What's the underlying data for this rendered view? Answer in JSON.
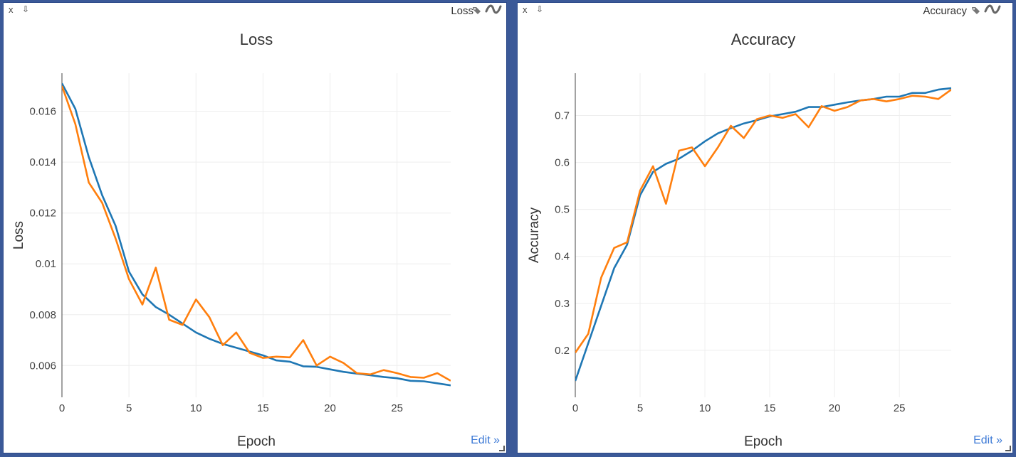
{
  "panels": [
    {
      "close_label": "x",
      "download_glyph": "⇩",
      "label": "Loss",
      "tag_icon": "tag-icon",
      "smooth_icon": "smoothing-icon",
      "edit_label": "Edit »"
    },
    {
      "close_label": "x",
      "download_glyph": "⇩",
      "label": "Accuracy",
      "tag_icon": "tag-icon",
      "smooth_icon": "smoothing-icon",
      "edit_label": "Edit »"
    }
  ],
  "colors": {
    "series_train": "#1f77b4",
    "series_val": "#ff7f0e",
    "background": "#3b5998",
    "link": "#3d7ad6"
  },
  "chart_data": [
    {
      "type": "line",
      "title": "Loss",
      "xlabel": "Epoch",
      "ylabel": "Loss",
      "xlim": [
        0,
        29
      ],
      "ylim": [
        0.00475,
        0.0175
      ],
      "xticks": [
        0,
        5,
        10,
        15,
        20,
        25
      ],
      "yticks": [
        0.006,
        0.008,
        0.01,
        0.012,
        0.014,
        0.016
      ],
      "ytick_labels": [
        "0.006",
        "0.008",
        "0.01",
        "0.012",
        "0.014",
        "0.016"
      ],
      "grid": true,
      "x": [
        0,
        1,
        2,
        3,
        4,
        5,
        6,
        7,
        8,
        9,
        10,
        11,
        12,
        13,
        14,
        15,
        16,
        17,
        18,
        19,
        20,
        21,
        22,
        23,
        24,
        25,
        26,
        27,
        28,
        29
      ],
      "series": [
        {
          "color": "#1f77b4",
          "values": [
            0.0171,
            0.0161,
            0.0142,
            0.0127,
            0.0115,
            0.0097,
            0.0088,
            0.0083,
            0.008,
            0.00765,
            0.0073,
            0.00705,
            0.00685,
            0.0067,
            0.00655,
            0.0064,
            0.0062,
            0.00615,
            0.00597,
            0.00595,
            0.00585,
            0.00575,
            0.00568,
            0.00562,
            0.00555,
            0.0055,
            0.0054,
            0.00538,
            0.0053,
            0.00522
          ]
        },
        {
          "color": "#ff7f0e",
          "values": [
            0.017,
            0.0155,
            0.0132,
            0.0124,
            0.011,
            0.0094,
            0.0084,
            0.00985,
            0.0078,
            0.0076,
            0.0086,
            0.0079,
            0.0068,
            0.0073,
            0.0065,
            0.0063,
            0.00635,
            0.00632,
            0.007,
            0.006,
            0.00635,
            0.0061,
            0.0057,
            0.00565,
            0.00582,
            0.0057,
            0.00555,
            0.00552,
            0.0057,
            0.0054
          ]
        }
      ]
    },
    {
      "type": "line",
      "title": "Accuracy",
      "xlabel": "Epoch",
      "ylabel": "Accuracy",
      "xlim": [
        0,
        29
      ],
      "ylim": [
        0.1,
        0.79
      ],
      "xticks": [
        0,
        5,
        10,
        15,
        20,
        25
      ],
      "yticks": [
        0.2,
        0.3,
        0.4,
        0.5,
        0.6,
        0.7
      ],
      "ytick_labels": [
        "0.2",
        "0.3",
        "0.4",
        "0.5",
        "0.6",
        "0.7"
      ],
      "grid": true,
      "x": [
        0,
        1,
        2,
        3,
        4,
        5,
        6,
        7,
        8,
        9,
        10,
        11,
        12,
        13,
        14,
        15,
        16,
        17,
        18,
        19,
        20,
        21,
        22,
        23,
        24,
        25,
        26,
        27,
        28,
        29
      ],
      "series": [
        {
          "color": "#1f77b4",
          "values": [
            0.135,
            0.215,
            0.295,
            0.375,
            0.425,
            0.53,
            0.58,
            0.597,
            0.608,
            0.625,
            0.645,
            0.662,
            0.673,
            0.683,
            0.69,
            0.698,
            0.703,
            0.708,
            0.718,
            0.718,
            0.723,
            0.728,
            0.732,
            0.735,
            0.74,
            0.74,
            0.748,
            0.748,
            0.755,
            0.758
          ]
        },
        {
          "color": "#ff7f0e",
          "values": [
            0.195,
            0.235,
            0.355,
            0.418,
            0.43,
            0.54,
            0.592,
            0.512,
            0.625,
            0.632,
            0.592,
            0.632,
            0.678,
            0.652,
            0.692,
            0.7,
            0.695,
            0.703,
            0.675,
            0.72,
            0.71,
            0.718,
            0.732,
            0.735,
            0.73,
            0.735,
            0.742,
            0.74,
            0.735,
            0.755
          ]
        }
      ]
    }
  ]
}
